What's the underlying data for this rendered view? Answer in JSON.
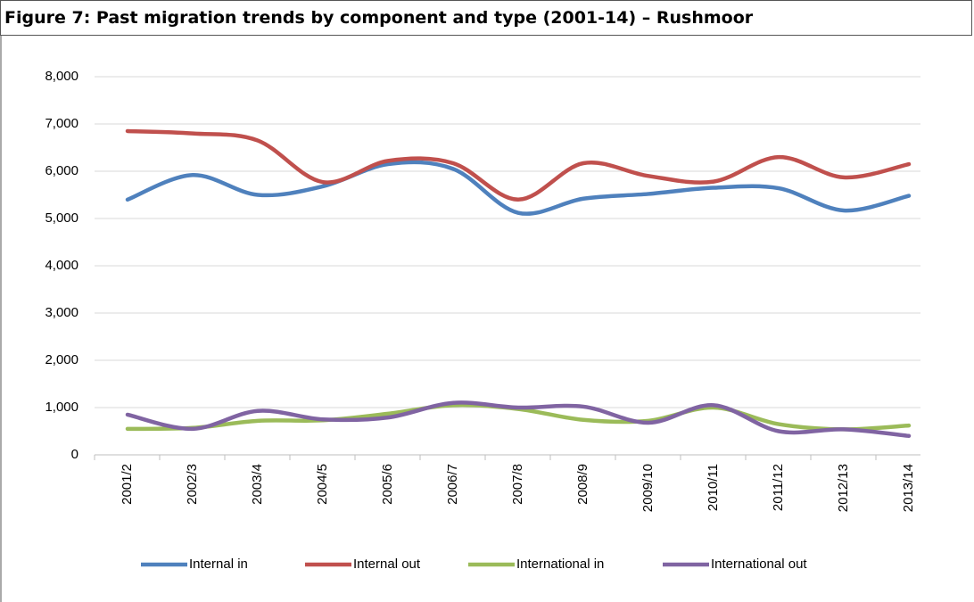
{
  "chart_data": {
    "type": "line",
    "title": "Figure 7: Past migration trends by component and type (2001-14) – Rushmoor",
    "categories": [
      "2001/2",
      "2002/3",
      "2003/4",
      "2004/5",
      "2005/6",
      "2006/7",
      "2007/8",
      "2008/9",
      "2009/10",
      "2010/11",
      "2011/12",
      "2012/13",
      "2013/14"
    ],
    "series": [
      {
        "name": "Internal in",
        "color": "#4f81bd",
        "values": [
          5400,
          5920,
          5500,
          5680,
          6150,
          6050,
          5120,
          5420,
          5520,
          5650,
          5640,
          5170,
          5480
        ]
      },
      {
        "name": "Internal out",
        "color": "#c0504d",
        "values": [
          6850,
          6800,
          6650,
          5770,
          6220,
          6170,
          5400,
          6170,
          5900,
          5780,
          6300,
          5870,
          6150
        ]
      },
      {
        "name": "International in",
        "color": "#9bbb59",
        "values": [
          550,
          570,
          720,
          730,
          870,
          1050,
          970,
          740,
          720,
          1000,
          650,
          540,
          620
        ]
      },
      {
        "name": "International out",
        "color": "#8064a2",
        "values": [
          850,
          550,
          930,
          750,
          790,
          1100,
          1000,
          1020,
          680,
          1050,
          500,
          540,
          400
        ]
      }
    ],
    "ylim": [
      0,
      8000
    ],
    "yticks": [
      0,
      {
        "value": 1000,
        "label": "1,000"
      },
      {
        "value": 2000,
        "label": "2,000"
      },
      {
        "value": 3000,
        "label": "3,000"
      },
      {
        "value": 4000,
        "label": "4,000"
      },
      {
        "value": 5000,
        "label": "5,000"
      },
      {
        "value": 6000,
        "label": "6,000"
      },
      {
        "value": 7000,
        "label": "7,000"
      },
      {
        "value": 8000,
        "label": "8,000"
      }
    ],
    "grid": true,
    "smooth": true,
    "legend": "bottom"
  }
}
